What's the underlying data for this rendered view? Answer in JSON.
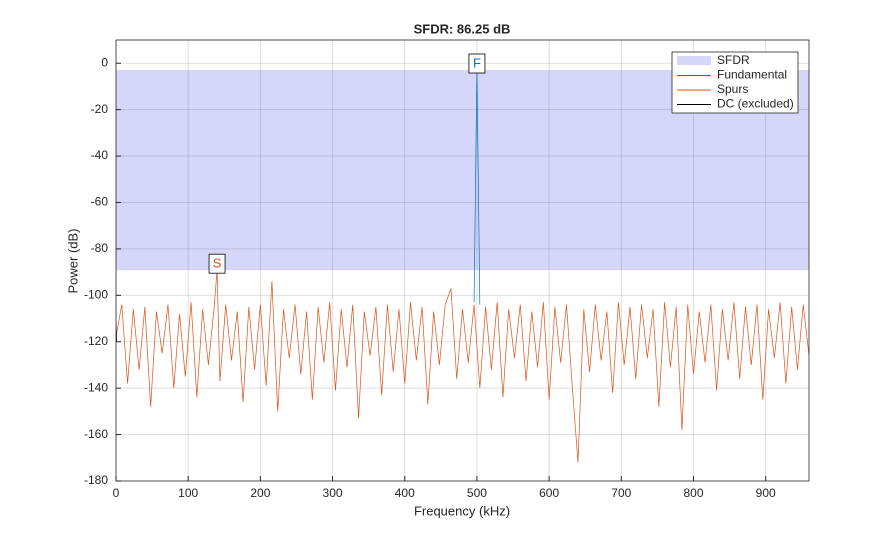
{
  "chart_data": {
    "type": "line",
    "title": "SFDR:  86.25 dB",
    "xlabel": "Frequency (kHz)",
    "ylabel": "Power (dB)",
    "xlim": [
      0,
      960
    ],
    "ylim": [
      -180,
      10
    ],
    "xticks": [
      0,
      100,
      200,
      300,
      400,
      500,
      600,
      700,
      800,
      900
    ],
    "yticks": [
      -180,
      -160,
      -140,
      -120,
      -100,
      -80,
      -60,
      -40,
      -20,
      0
    ],
    "grid": true,
    "legend": "upper right",
    "sfdr_band": {
      "name": "SFDR",
      "color": "#d6d6fb",
      "ylim": [
        -89.18,
        -2.93
      ]
    },
    "series": [
      {
        "name": "Fundamental",
        "color": "#0072bd",
        "x": [
          496,
          500,
          504
        ],
        "values": [
          -103,
          -2.93,
          -104
        ]
      },
      {
        "name": "Spurs",
        "color": "#d95319",
        "x": [
          0,
          8,
          16,
          24,
          32,
          40,
          48,
          56,
          64,
          72,
          80,
          88,
          96,
          104,
          112,
          120,
          128,
          136,
          140,
          144,
          152,
          160,
          168,
          176,
          184,
          192,
          200,
          208,
          216,
          224,
          232,
          240,
          248,
          256,
          264,
          272,
          280,
          288,
          296,
          304,
          312,
          320,
          328,
          336,
          344,
          352,
          360,
          368,
          376,
          384,
          392,
          400,
          408,
          416,
          424,
          432,
          440,
          448,
          456,
          464,
          472,
          480,
          488,
          496,
          504,
          512,
          520,
          528,
          536,
          544,
          552,
          560,
          568,
          576,
          584,
          592,
          600,
          608,
          616,
          624,
          632,
          640,
          648,
          656,
          664,
          672,
          680,
          688,
          696,
          704,
          712,
          720,
          728,
          736,
          744,
          752,
          760,
          768,
          776,
          784,
          792,
          800,
          808,
          816,
          824,
          832,
          840,
          848,
          856,
          864,
          872,
          880,
          888,
          896,
          904,
          912,
          920,
          928,
          936,
          944,
          952,
          960
        ],
        "values": [
          -118,
          -104,
          -138,
          -106,
          -132,
          -105,
          -148,
          -107,
          -125,
          -104,
          -140,
          -108,
          -135,
          -103,
          -144,
          -106,
          -130,
          -105,
          -89.18,
          -137,
          -104,
          -128,
          -107,
          -146,
          -105,
          -132,
          -104,
          -139,
          -94,
          -150,
          -106,
          -127,
          -104,
          -134,
          -107,
          -145,
          -105,
          -129,
          -103,
          -141,
          -106,
          -131,
          -104,
          -153,
          -107,
          -126,
          -105,
          -143,
          -104,
          -133,
          -106,
          -138,
          -103,
          -128,
          -105,
          -147,
          -107,
          -130,
          -104,
          -97,
          -136,
          -106,
          -129,
          -104,
          -140,
          -105,
          -132,
          -103,
          -144,
          -106,
          -127,
          -104,
          -137,
          -107,
          -131,
          -103,
          -145,
          -105,
          -129,
          -104,
          -139,
          -172,
          -106,
          -133,
          -104,
          -128,
          -107,
          -142,
          -103,
          -130,
          -105,
          -136,
          -104,
          -127,
          -106,
          -148,
          -103,
          -131,
          -105,
          -158,
          -104,
          -134,
          -107,
          -129,
          -104,
          -141,
          -106,
          -128,
          -103,
          -136,
          -105,
          -130,
          -104,
          -145,
          -106,
          -127,
          -103,
          -138,
          -105,
          -132,
          -104,
          -126
        ]
      },
      {
        "name": "DC (excluded)",
        "color": "#000000",
        "x": [
          0,
          1
        ],
        "values": [
          -112,
          -120
        ]
      }
    ],
    "markers": [
      {
        "label": "F",
        "x": 500,
        "y": -2.93,
        "color": "#0072bd"
      },
      {
        "label": "S",
        "x": 140,
        "y": -89.18,
        "color": "#d95319"
      }
    ]
  }
}
